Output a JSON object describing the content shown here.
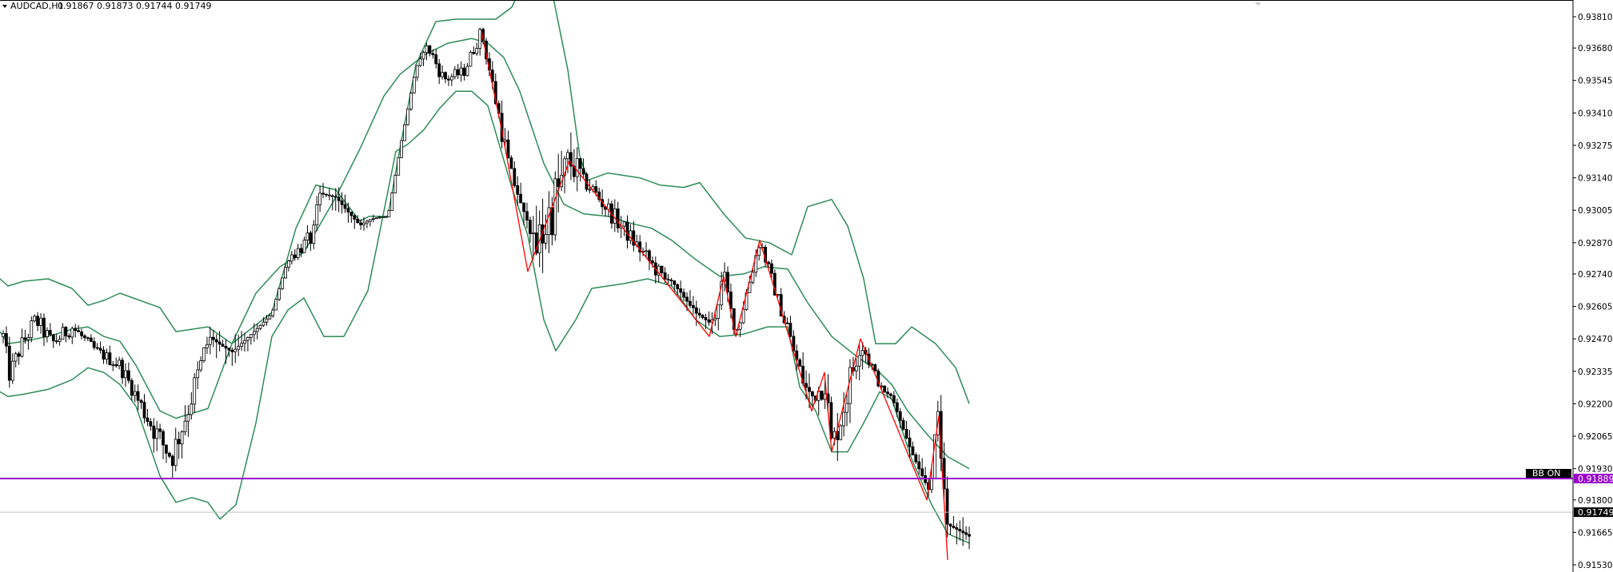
{
  "header": {
    "symbol": "AUDCAD,H1",
    "ohlc": "0.91867 0.91873 0.91744 0.91749"
  },
  "chart_data": {
    "type": "candlestick",
    "title": "AUDCAD,H1",
    "y_ticks": [
      "0.93810",
      "0.93680",
      "0.93545",
      "0.93410",
      "0.93275",
      "0.93140",
      "0.93005",
      "0.92870",
      "0.92740",
      "0.92605",
      "0.92470",
      "0.92335",
      "0.92200",
      "0.92065",
      "0.91930",
      "0.91800",
      "0.91665",
      "0.91530"
    ],
    "ylim": [
      0.915,
      0.93845
    ],
    "num_bars": 309,
    "grid": false,
    "colors": {
      "bull": "#ffffff",
      "bear": "#000000",
      "wick": "#000000",
      "bands": "#2e8b57",
      "zigzag": "#ff0000",
      "hline": "#9900cc",
      "price_line": "#c0c0c0"
    },
    "bollinger": {
      "upper": [
        [
          0,
          0.9272
        ],
        [
          10,
          0.9269
        ],
        [
          30,
          0.9271
        ],
        [
          60,
          0.9272
        ],
        [
          90,
          0.9268
        ],
        [
          110,
          0.9261
        ],
        [
          130,
          0.9263
        ],
        [
          150,
          0.9266
        ],
        [
          200,
          0.926
        ],
        [
          220,
          0.925
        ],
        [
          260,
          0.9252
        ],
        [
          290,
          0.9245
        ],
        [
          340,
          0.9258
        ],
        [
          370,
          0.9293
        ],
        [
          395,
          0.9311
        ],
        [
          420,
          0.9309
        ],
        [
          450,
          0.9296
        ],
        [
          462,
          0.9298
        ],
        [
          485,
          0.9298
        ],
        [
          500,
          0.9326
        ],
        [
          520,
          0.9361
        ],
        [
          545,
          0.9379
        ],
        [
          570,
          0.938
        ],
        [
          600,
          0.938
        ],
        [
          620,
          0.938
        ],
        [
          640,
          0.9385
        ],
        [
          670,
          0.9406
        ],
        [
          690,
          0.9392
        ],
        [
          710,
          0.9359
        ],
        [
          725,
          0.9323
        ],
        [
          735,
          0.9313
        ],
        [
          760,
          0.9316
        ],
        [
          800,
          0.9314
        ],
        [
          825,
          0.9311
        ],
        [
          855,
          0.931
        ],
        [
          875,
          0.9312
        ],
        [
          905,
          0.9299
        ],
        [
          932,
          0.9289
        ],
        [
          962,
          0.9287
        ],
        [
          990,
          0.9282
        ],
        [
          998,
          0.929
        ],
        [
          1010,
          0.9302
        ],
        [
          1040,
          0.9305
        ],
        [
          1060,
          0.9294
        ],
        [
          1080,
          0.9272
        ],
        [
          1095,
          0.9245
        ],
        [
          1120,
          0.9245
        ],
        [
          1140,
          0.9252
        ],
        [
          1170,
          0.9245
        ],
        [
          1195,
          0.9235
        ],
        [
          1212,
          0.922
        ]
      ],
      "middle": [
        [
          0,
          0.925
        ],
        [
          10,
          0.9245
        ],
        [
          30,
          0.9246
        ],
        [
          60,
          0.9248
        ],
        [
          90,
          0.9251
        ],
        [
          110,
          0.9252
        ],
        [
          130,
          0.9248
        ],
        [
          150,
          0.9246
        ],
        [
          170,
          0.9236
        ],
        [
          200,
          0.9217
        ],
        [
          220,
          0.9214
        ],
        [
          260,
          0.9218
        ],
        [
          290,
          0.9245
        ],
        [
          320,
          0.9266
        ],
        [
          350,
          0.9277
        ],
        [
          380,
          0.9283
        ],
        [
          420,
          0.9306
        ],
        [
          450,
          0.9326
        ],
        [
          480,
          0.9348
        ],
        [
          500,
          0.9357
        ],
        [
          530,
          0.9365
        ],
        [
          560,
          0.937
        ],
        [
          590,
          0.9372
        ],
        [
          610,
          0.937
        ],
        [
          630,
          0.9364
        ],
        [
          650,
          0.935
        ],
        [
          680,
          0.932
        ],
        [
          705,
          0.9303
        ],
        [
          730,
          0.9299
        ],
        [
          760,
          0.9298
        ],
        [
          790,
          0.9295
        ],
        [
          815,
          0.9293
        ],
        [
          840,
          0.9288
        ],
        [
          870,
          0.928
        ],
        [
          900,
          0.9273
        ],
        [
          930,
          0.9274
        ],
        [
          955,
          0.9277
        ],
        [
          985,
          0.9276
        ],
        [
          1010,
          0.9262
        ],
        [
          1040,
          0.9248
        ],
        [
          1070,
          0.924
        ],
        [
          1100,
          0.9233
        ],
        [
          1115,
          0.9228
        ],
        [
          1135,
          0.9217
        ],
        [
          1160,
          0.9207
        ],
        [
          1185,
          0.9198
        ],
        [
          1212,
          0.9193
        ]
      ],
      "lower": [
        [
          0,
          0.9225
        ],
        [
          10,
          0.9223
        ],
        [
          30,
          0.9224
        ],
        [
          60,
          0.9226
        ],
        [
          90,
          0.923
        ],
        [
          110,
          0.9235
        ],
        [
          130,
          0.9233
        ],
        [
          150,
          0.9228
        ],
        [
          170,
          0.9219
        ],
        [
          200,
          0.919
        ],
        [
          220,
          0.9179
        ],
        [
          240,
          0.9181
        ],
        [
          260,
          0.9179
        ],
        [
          275,
          0.9172
        ],
        [
          295,
          0.9178
        ],
        [
          320,
          0.9212
        ],
        [
          340,
          0.9248
        ],
        [
          360,
          0.9259
        ],
        [
          380,
          0.9264
        ],
        [
          405,
          0.9248
        ],
        [
          430,
          0.9248
        ],
        [
          460,
          0.9267
        ],
        [
          480,
          0.93
        ],
        [
          495,
          0.9325
        ],
        [
          510,
          0.9328
        ],
        [
          530,
          0.9334
        ],
        [
          550,
          0.9343
        ],
        [
          570,
          0.935
        ],
        [
          590,
          0.935
        ],
        [
          610,
          0.9344
        ],
        [
          640,
          0.931
        ],
        [
          660,
          0.929
        ],
        [
          680,
          0.9255
        ],
        [
          695,
          0.9242
        ],
        [
          720,
          0.9255
        ],
        [
          740,
          0.9268
        ],
        [
          780,
          0.927
        ],
        [
          810,
          0.9272
        ],
        [
          840,
          0.9269
        ],
        [
          870,
          0.9255
        ],
        [
          900,
          0.9248
        ],
        [
          930,
          0.9249
        ],
        [
          960,
          0.9252
        ],
        [
          985,
          0.9252
        ],
        [
          1000,
          0.9227
        ],
        [
          1020,
          0.9217
        ],
        [
          1040,
          0.92
        ],
        [
          1060,
          0.92
        ],
        [
          1080,
          0.9212
        ],
        [
          1100,
          0.9225
        ],
        [
          1115,
          0.9222
        ],
        [
          1140,
          0.9197
        ],
        [
          1165,
          0.9178
        ],
        [
          1185,
          0.9166
        ],
        [
          1212,
          0.9162
        ]
      ]
    },
    "zigzag": [
      [
        602,
        0.9375
      ],
      [
        628,
        0.9333
      ],
      [
        660,
        0.9275
      ],
      [
        712,
        0.9321
      ],
      [
        887,
        0.9248
      ],
      [
        905,
        0.9273
      ],
      [
        920,
        0.9248
      ],
      [
        950,
        0.9288
      ],
      [
        1015,
        0.9217
      ],
      [
        1031,
        0.9233
      ],
      [
        1040,
        0.92
      ],
      [
        1076,
        0.9247
      ],
      [
        1159,
        0.918
      ],
      [
        1174,
        0.9215
      ],
      [
        1185,
        0.9155
      ]
    ],
    "horizontal_lines": [
      {
        "label": "BB ON",
        "value": "0.91889",
        "price": 0.91889
      }
    ],
    "current_price": {
      "value": "0.91749",
      "price": 0.91749
    }
  }
}
